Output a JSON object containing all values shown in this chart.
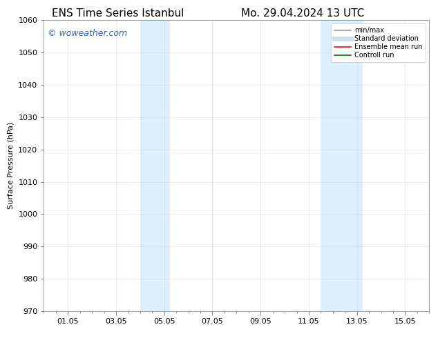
{
  "title_left": "ENS Time Series Istanbul",
  "title_right": "Mo. 29.04.2024 13 UTC",
  "ylabel": "Surface Pressure (hPa)",
  "ylim": [
    970,
    1060
  ],
  "yticks": [
    970,
    980,
    990,
    1000,
    1010,
    1020,
    1030,
    1040,
    1050,
    1060
  ],
  "xlim": [
    0,
    16
  ],
  "xtick_positions": [
    1,
    3,
    5,
    7,
    9,
    11,
    13,
    15
  ],
  "xtick_labels": [
    "01.05",
    "03.05",
    "05.05",
    "07.05",
    "09.05",
    "11.05",
    "13.05",
    "15.05"
  ],
  "background_color": "#ffffff",
  "plot_bg_color": "#ffffff",
  "watermark": "© woweather.com",
  "watermark_color": "#3366cc",
  "shaded_bands": [
    {
      "x_start": 4.0,
      "x_end": 5.25,
      "color": "#ddeeff"
    },
    {
      "x_start": 11.5,
      "x_end": 13.25,
      "color": "#ddeeff"
    }
  ],
  "legend_items": [
    {
      "label": "min/max",
      "color": "#999999",
      "lw": 1.2,
      "style": "solid"
    },
    {
      "label": "Standard deviation",
      "color": "#cce0f0",
      "lw": 5,
      "style": "solid"
    },
    {
      "label": "Ensemble mean run",
      "color": "#ff0000",
      "lw": 1.2,
      "style": "solid"
    },
    {
      "label": "Controll run",
      "color": "#007700",
      "lw": 1.2,
      "style": "solid"
    }
  ],
  "grid_color": "#bbbbbb",
  "grid_alpha": 0.4,
  "font_size": 8,
  "title_font_size": 11,
  "watermark_font_size": 9
}
